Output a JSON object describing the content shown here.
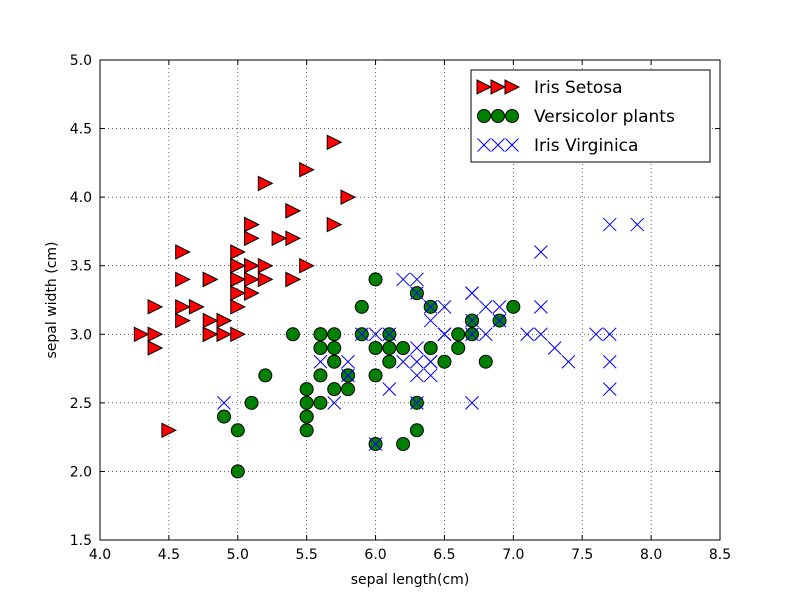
{
  "chart_data": {
    "type": "scatter",
    "title": "",
    "xlabel": "sepal length(cm)",
    "ylabel": "sepal width (cm)",
    "xlim": [
      4.0,
      8.5
    ],
    "ylim": [
      1.5,
      5.0
    ],
    "xticks": [
      "4.0",
      "4.5",
      "5.0",
      "5.5",
      "6.0",
      "6.5",
      "7.0",
      "7.5",
      "8.0",
      "8.5"
    ],
    "yticks": [
      "1.5",
      "2.0",
      "2.5",
      "3.0",
      "3.5",
      "4.0",
      "4.5",
      "5.0"
    ],
    "grid": true,
    "legend_position": "top-right",
    "series": [
      {
        "name": "Iris Setosa",
        "marker": "right-triangle",
        "color": "#ff0000",
        "points": [
          [
            5.1,
            3.5
          ],
          [
            4.9,
            3.0
          ],
          [
            4.7,
            3.2
          ],
          [
            4.6,
            3.1
          ],
          [
            5.0,
            3.6
          ],
          [
            5.4,
            3.9
          ],
          [
            4.6,
            3.4
          ],
          [
            5.0,
            3.4
          ],
          [
            4.4,
            2.9
          ],
          [
            4.9,
            3.1
          ],
          [
            5.4,
            3.7
          ],
          [
            4.8,
            3.4
          ],
          [
            4.8,
            3.0
          ],
          [
            4.3,
            3.0
          ],
          [
            5.8,
            4.0
          ],
          [
            5.7,
            4.4
          ],
          [
            5.4,
            3.9
          ],
          [
            5.1,
            3.5
          ],
          [
            5.7,
            3.8
          ],
          [
            5.1,
            3.8
          ],
          [
            5.4,
            3.4
          ],
          [
            5.1,
            3.7
          ],
          [
            4.6,
            3.6
          ],
          [
            5.1,
            3.3
          ],
          [
            4.8,
            3.4
          ],
          [
            5.0,
            3.0
          ],
          [
            5.0,
            3.4
          ],
          [
            5.2,
            3.5
          ],
          [
            5.2,
            3.4
          ],
          [
            4.7,
            3.2
          ],
          [
            4.8,
            3.1
          ],
          [
            5.4,
            3.4
          ],
          [
            5.2,
            4.1
          ],
          [
            5.5,
            4.2
          ],
          [
            4.9,
            3.1
          ],
          [
            5.0,
            3.2
          ],
          [
            5.5,
            3.5
          ],
          [
            4.4,
            3.0
          ],
          [
            5.1,
            3.4
          ],
          [
            5.0,
            3.5
          ],
          [
            4.5,
            2.3
          ],
          [
            4.4,
            3.2
          ],
          [
            5.0,
            3.5
          ],
          [
            5.1,
            3.8
          ],
          [
            4.8,
            3.0
          ],
          [
            5.1,
            3.8
          ],
          [
            4.6,
            3.2
          ],
          [
            5.3,
            3.7
          ],
          [
            5.0,
            3.3
          ]
        ]
      },
      {
        "name": "Versicolor plants",
        "marker": "circle",
        "color": "#008000",
        "points": [
          [
            7.0,
            3.2
          ],
          [
            6.4,
            3.2
          ],
          [
            6.9,
            3.1
          ],
          [
            5.5,
            2.3
          ],
          [
            6.5,
            2.8
          ],
          [
            5.7,
            2.8
          ],
          [
            6.3,
            3.3
          ],
          [
            4.9,
            2.4
          ],
          [
            6.6,
            2.9
          ],
          [
            5.2,
            2.7
          ],
          [
            5.0,
            2.0
          ],
          [
            5.9,
            3.0
          ],
          [
            6.0,
            2.2
          ],
          [
            6.1,
            2.9
          ],
          [
            5.6,
            2.9
          ],
          [
            6.7,
            3.1
          ],
          [
            5.6,
            3.0
          ],
          [
            5.8,
            2.7
          ],
          [
            6.2,
            2.2
          ],
          [
            5.6,
            2.5
          ],
          [
            5.9,
            3.2
          ],
          [
            6.1,
            2.8
          ],
          [
            6.3,
            2.5
          ],
          [
            6.4,
            2.9
          ],
          [
            6.6,
            3.0
          ],
          [
            6.8,
            2.8
          ],
          [
            6.7,
            3.0
          ],
          [
            6.0,
            2.9
          ],
          [
            5.7,
            2.6
          ],
          [
            5.5,
            2.4
          ],
          [
            5.5,
            2.4
          ],
          [
            5.8,
            2.7
          ],
          [
            6.0,
            2.7
          ],
          [
            5.4,
            3.0
          ],
          [
            6.0,
            3.4
          ],
          [
            6.7,
            3.1
          ],
          [
            6.3,
            2.3
          ],
          [
            5.6,
            3.0
          ],
          [
            5.5,
            2.5
          ],
          [
            5.5,
            2.6
          ],
          [
            6.1,
            3.0
          ],
          [
            5.8,
            2.6
          ],
          [
            5.0,
            2.3
          ],
          [
            5.6,
            2.7
          ],
          [
            5.7,
            3.0
          ],
          [
            5.7,
            2.9
          ],
          [
            6.2,
            2.9
          ],
          [
            5.1,
            2.5
          ],
          [
            5.7,
            2.8
          ]
        ]
      },
      {
        "name": "Iris Virginica",
        "marker": "x",
        "color": "#0000ff",
        "points": [
          [
            6.3,
            3.3
          ],
          [
            5.8,
            2.7
          ],
          [
            7.1,
            3.0
          ],
          [
            6.3,
            2.9
          ],
          [
            6.5,
            3.0
          ],
          [
            7.6,
            3.0
          ],
          [
            4.9,
            2.5
          ],
          [
            7.3,
            2.9
          ],
          [
            6.7,
            2.5
          ],
          [
            7.2,
            3.6
          ],
          [
            6.5,
            3.2
          ],
          [
            6.4,
            2.7
          ],
          [
            6.8,
            3.0
          ],
          [
            5.7,
            2.5
          ],
          [
            5.8,
            2.8
          ],
          [
            6.4,
            3.2
          ],
          [
            6.5,
            3.0
          ],
          [
            7.7,
            3.8
          ],
          [
            7.7,
            2.6
          ],
          [
            6.0,
            2.2
          ],
          [
            6.9,
            3.2
          ],
          [
            5.6,
            2.8
          ],
          [
            7.7,
            2.8
          ],
          [
            6.3,
            2.7
          ],
          [
            6.7,
            3.3
          ],
          [
            7.2,
            3.2
          ],
          [
            6.2,
            2.8
          ],
          [
            6.1,
            3.0
          ],
          [
            6.4,
            2.8
          ],
          [
            7.2,
            3.0
          ],
          [
            7.4,
            2.8
          ],
          [
            7.9,
            3.8
          ],
          [
            6.4,
            2.8
          ],
          [
            6.3,
            2.8
          ],
          [
            6.1,
            2.6
          ],
          [
            7.7,
            3.0
          ],
          [
            6.3,
            3.4
          ],
          [
            6.4,
            3.1
          ],
          [
            6.0,
            3.0
          ],
          [
            6.9,
            3.1
          ],
          [
            6.7,
            3.1
          ],
          [
            6.9,
            3.1
          ],
          [
            5.8,
            2.7
          ],
          [
            6.8,
            3.2
          ],
          [
            6.7,
            3.3
          ],
          [
            6.7,
            3.0
          ],
          [
            6.3,
            2.5
          ],
          [
            6.5,
            3.0
          ],
          [
            6.2,
            3.4
          ],
          [
            5.9,
            3.0
          ]
        ]
      }
    ]
  }
}
